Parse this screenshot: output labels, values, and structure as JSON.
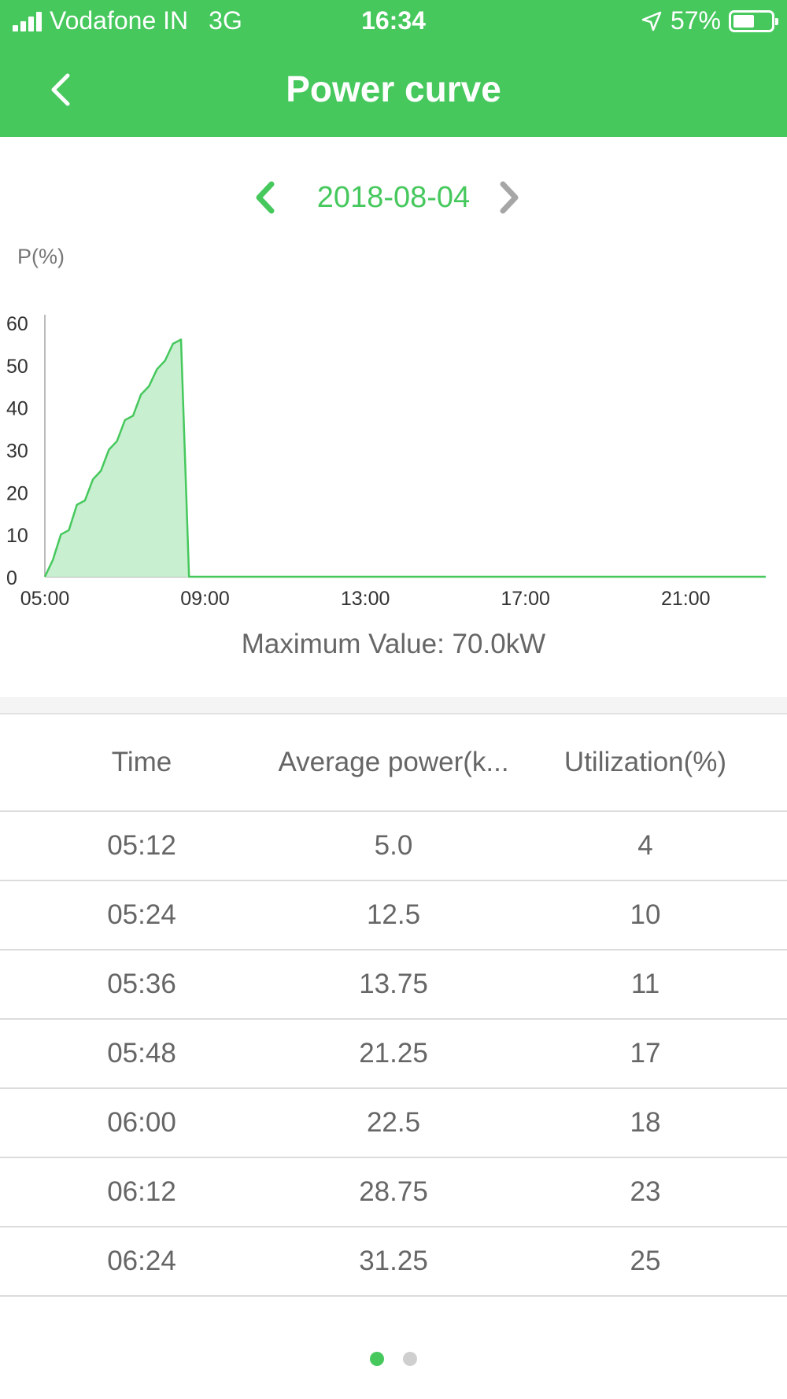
{
  "status_bar": {
    "carrier": "Vodafone IN",
    "network": "3G",
    "time": "16:34",
    "battery": "57%",
    "battery_level": 0.57
  },
  "nav": {
    "title": "Power curve",
    "back_icon": "chevron-left-icon"
  },
  "date_selector": {
    "date": "2018-08-04",
    "prev_icon": "chevron-left-icon",
    "next_icon": "chevron-right-icon"
  },
  "colors": {
    "accent": "#46c85d",
    "area_fill": "#c8efcf",
    "disabled_arrow": "#a6a6a6",
    "inactive_dot": "#cfcfcf"
  },
  "chart_data": {
    "type": "area",
    "ylabel": "P(%)",
    "ylim": [
      0,
      60
    ],
    "yticks": [
      "0",
      "10",
      "20",
      "30",
      "40",
      "50",
      "60"
    ],
    "xticks": [
      "05:00",
      "09:00",
      "13:00",
      "17:00",
      "21:00"
    ],
    "xlim": [
      "05:00",
      "23:00"
    ],
    "series": [
      {
        "x": [
          "05:00",
          "05:12",
          "05:24",
          "05:36",
          "05:48",
          "06:00",
          "06:12",
          "06:24",
          "06:36",
          "06:48",
          "07:00",
          "07:12",
          "07:24",
          "07:36",
          "07:48",
          "08:00",
          "08:12",
          "08:24",
          "08:36",
          "08:48",
          "09:00",
          "23:00"
        ],
        "y": [
          0,
          4,
          10,
          11,
          17,
          18,
          23,
          25,
          30,
          32,
          37,
          38,
          43,
          45,
          49,
          51,
          55,
          56,
          0,
          0,
          0,
          0
        ]
      }
    ],
    "grid": false
  },
  "max_value_text": "Maximum Value: 70.0kW",
  "table": {
    "headers": [
      "Time",
      "Average power(k...",
      "Utilization(%)"
    ],
    "rows": [
      [
        "05:12",
        "5.0",
        "4"
      ],
      [
        "05:24",
        "12.5",
        "10"
      ],
      [
        "05:36",
        "13.75",
        "11"
      ],
      [
        "05:48",
        "21.25",
        "17"
      ],
      [
        "06:00",
        "22.5",
        "18"
      ],
      [
        "06:12",
        "28.75",
        "23"
      ],
      [
        "06:24",
        "31.25",
        "25"
      ]
    ]
  },
  "pager": {
    "pages": 2,
    "active_index": 0
  }
}
